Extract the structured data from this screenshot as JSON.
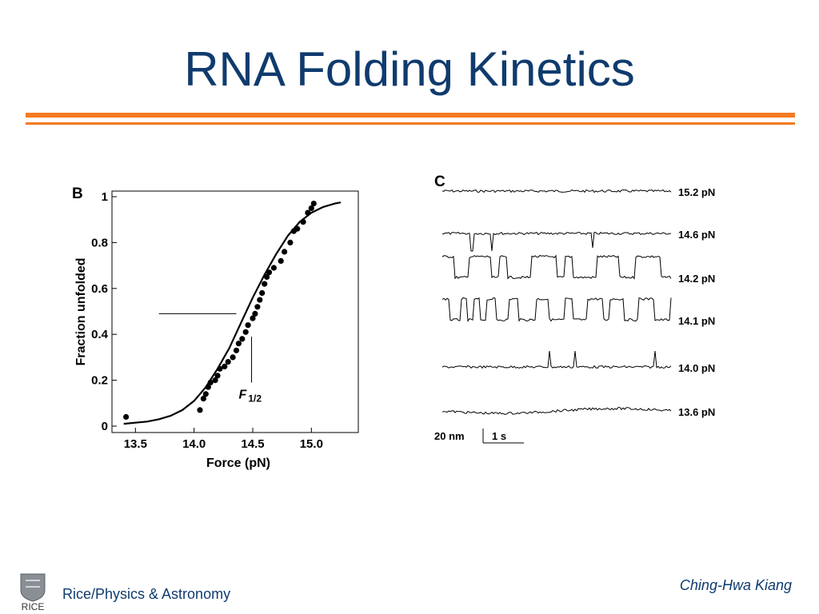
{
  "slide": {
    "title": "RNA Folding Kinetics",
    "footer_left": "Rice/Physics & Astronomy",
    "footer_right": "Ching-Hwa Kiang",
    "logo_text": "RICE",
    "accent_color": "#f47a20",
    "title_color": "#0f3b6e"
  },
  "chart_data": [
    {
      "type": "scatter",
      "panel_label": "B",
      "xlabel": "Force (pN)",
      "ylabel": "Fraction unfolded",
      "xlim": [
        13.3,
        15.4
      ],
      "ylim": [
        0,
        1
      ],
      "xticks": [
        "13.5",
        "14.0",
        "14.5",
        "15.0"
      ],
      "yticks": [
        "0",
        "0.2",
        "0.4",
        "0.6",
        "0.8",
        "1"
      ],
      "annotation": "F1/2",
      "annotation_main": "F",
      "annotation_sub": "1/2",
      "f_half": 14.49,
      "points": [
        [
          13.42,
          0.04
        ],
        [
          14.05,
          0.07
        ],
        [
          14.08,
          0.12
        ],
        [
          14.1,
          0.14
        ],
        [
          14.12,
          0.17
        ],
        [
          14.14,
          0.19
        ],
        [
          14.18,
          0.2
        ],
        [
          14.2,
          0.22
        ],
        [
          14.22,
          0.25
        ],
        [
          14.26,
          0.26
        ],
        [
          14.29,
          0.28
        ],
        [
          14.33,
          0.3
        ],
        [
          14.36,
          0.33
        ],
        [
          14.38,
          0.36
        ],
        [
          14.41,
          0.38
        ],
        [
          14.44,
          0.41
        ],
        [
          14.46,
          0.44
        ],
        [
          14.5,
          0.47
        ],
        [
          14.52,
          0.49
        ],
        [
          14.54,
          0.52
        ],
        [
          14.56,
          0.55
        ],
        [
          14.58,
          0.58
        ],
        [
          14.6,
          0.62
        ],
        [
          14.62,
          0.65
        ],
        [
          14.64,
          0.67
        ],
        [
          14.68,
          0.69
        ],
        [
          14.74,
          0.72
        ],
        [
          14.77,
          0.76
        ],
        [
          14.82,
          0.8
        ],
        [
          14.85,
          0.85
        ],
        [
          14.88,
          0.86
        ],
        [
          14.93,
          0.89
        ],
        [
          14.97,
          0.93
        ],
        [
          15.0,
          0.95
        ],
        [
          15.02,
          0.97
        ]
      ],
      "fit": {
        "x": [
          13.4,
          13.5,
          13.6,
          13.7,
          13.8,
          13.9,
          14.0,
          14.1,
          14.2,
          14.3,
          14.4,
          14.5,
          14.6,
          14.7,
          14.8,
          14.9,
          15.0,
          15.1,
          15.2,
          15.25
        ],
        "y": [
          0.01,
          0.015,
          0.02,
          0.03,
          0.045,
          0.07,
          0.11,
          0.17,
          0.25,
          0.34,
          0.45,
          0.56,
          0.66,
          0.75,
          0.83,
          0.89,
          0.93,
          0.955,
          0.97,
          0.975
        ]
      }
    },
    {
      "type": "line",
      "panel_label": "C",
      "scale_bar_y": "20 nm",
      "scale_bar_x": "1 s",
      "traces": [
        {
          "label": "15.2 pN"
        },
        {
          "label": "14.6 pN"
        },
        {
          "label": "14.2 pN"
        },
        {
          "label": "14.1 pN"
        },
        {
          "label": "14.0 pN"
        },
        {
          "label": "13.6 pN"
        }
      ]
    }
  ]
}
